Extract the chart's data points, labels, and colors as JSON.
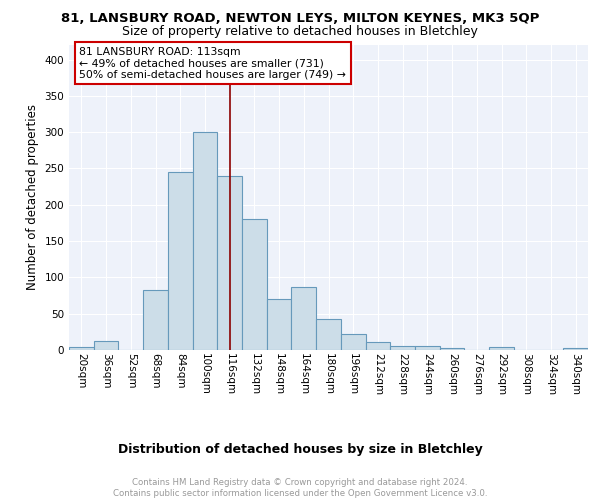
{
  "title": "81, LANSBURY ROAD, NEWTON LEYS, MILTON KEYNES, MK3 5QP",
  "subtitle": "Size of property relative to detached houses in Bletchley",
  "xlabel": "Distribution of detached houses by size in Bletchley",
  "ylabel": "Number of detached properties",
  "bin_labels": [
    "20sqm",
    "36sqm",
    "52sqm",
    "68sqm",
    "84sqm",
    "100sqm",
    "116sqm",
    "132sqm",
    "148sqm",
    "164sqm",
    "180sqm",
    "196sqm",
    "212sqm",
    "228sqm",
    "244sqm",
    "260sqm",
    "276sqm",
    "292sqm",
    "308sqm",
    "324sqm",
    "340sqm"
  ],
  "bar_values": [
    4,
    13,
    0,
    82,
    245,
    300,
    240,
    180,
    70,
    87,
    43,
    22,
    11,
    5,
    5,
    3,
    0,
    4,
    0,
    0,
    3
  ],
  "bar_color": "#ccdde8",
  "bar_edge_color": "#6699bb",
  "vline_x": 6.0,
  "vline_color": "#8b0000",
  "annotation_text": "81 LANSBURY ROAD: 113sqm\n← 49% of detached houses are smaller (731)\n50% of semi-detached houses are larger (749) →",
  "annotation_box_color": "white",
  "annotation_box_edge": "#cc0000",
  "ylim": [
    0,
    420
  ],
  "yticks": [
    0,
    50,
    100,
    150,
    200,
    250,
    300,
    350,
    400
  ],
  "footer_text": "Contains HM Land Registry data © Crown copyright and database right 2024.\nContains public sector information licensed under the Open Government Licence v3.0.",
  "bg_color": "#eef2fa",
  "grid_color": "#ffffff",
  "title_fontsize": 9.5,
  "subtitle_fontsize": 9.0,
  "ylabel_fontsize": 8.5,
  "xlabel_fontsize": 9.0,
  "tick_fontsize": 7.5,
  "annotation_fontsize": 7.8,
  "footer_fontsize": 6.2
}
